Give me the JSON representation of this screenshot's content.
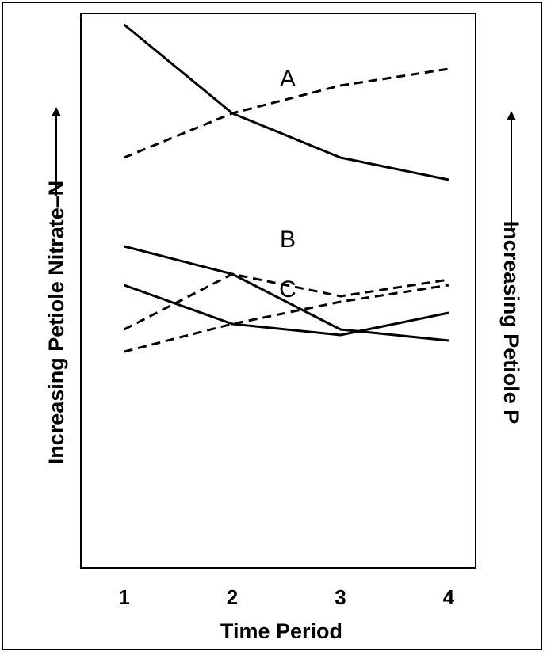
{
  "chart_data": {
    "type": "line",
    "title": "",
    "xlabel": "Time Period",
    "ylabel_left": "Increasing Petiole Nitrate–N",
    "ylabel_right": "Increasing Petiole P",
    "x": [
      1,
      2,
      3,
      4
    ],
    "x_tick_labels": [
      "1",
      "2",
      "3",
      "4"
    ],
    "xlim": [
      0.6,
      4.25
    ],
    "y_scale": "relative, unlabeled",
    "ylim": [
      0,
      100
    ],
    "grid": false,
    "legend": "none",
    "panels": [
      {
        "label": "A",
        "series": [
          {
            "style": "solid",
            "values": [
              98,
              82,
              74,
              70
            ]
          },
          {
            "style": "dashed",
            "values": [
              74,
              82,
              87,
              90
            ]
          }
        ]
      },
      {
        "label": "B",
        "series": [
          {
            "style": "solid",
            "values": [
              58,
              53,
              43,
              41
            ]
          },
          {
            "style": "dashed",
            "values": [
              43,
              53,
              49,
              52
            ]
          }
        ]
      },
      {
        "label": "C",
        "series": [
          {
            "style": "solid",
            "values": [
              51,
              44,
              42,
              46
            ]
          },
          {
            "style": "dashed",
            "values": [
              39,
              44,
              48,
              51
            ]
          }
        ]
      }
    ]
  }
}
